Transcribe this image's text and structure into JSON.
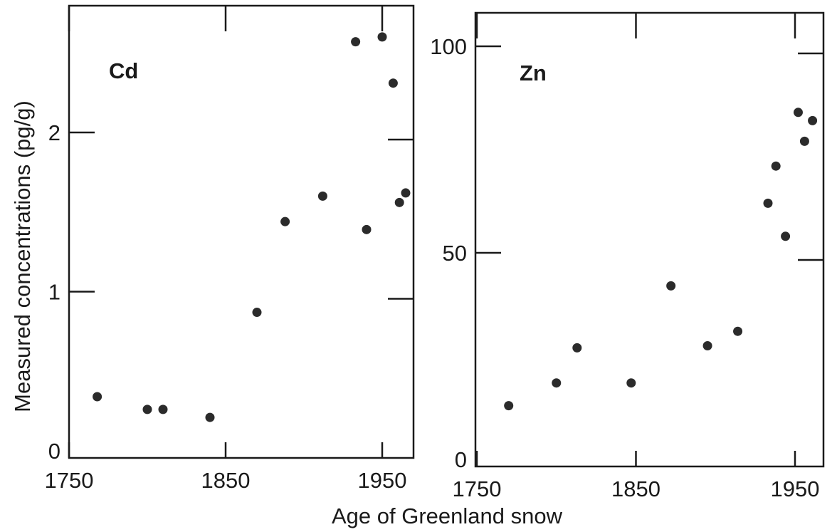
{
  "figure": {
    "ylabel": "Measured concentrations  (pg/g)",
    "xlabel": "Age of Greenland snow",
    "ink_color": "#1a1a1a",
    "marker_color": "#2b2b2b"
  },
  "chart_data": [
    {
      "type": "scatter",
      "title": "Cd",
      "xlabel": "",
      "ylabel": "",
      "xlim": [
        1750,
        1970
      ],
      "ylim": [
        0,
        2.7
      ],
      "xticks": [
        1750,
        1850,
        1950
      ],
      "xtick_labels": [
        "1750",
        "1850",
        "1950"
      ],
      "yticks": [
        0,
        1,
        2
      ],
      "ytick_labels": [
        "0",
        "1",
        "2"
      ],
      "grid": false,
      "series": [
        {
          "x": [
            1768,
            1800,
            1810,
            1840,
            1870,
            1888,
            1912,
            1933,
            1940,
            1950,
            1957,
            1961,
            1965
          ],
          "y": [
            0.34,
            0.26,
            0.26,
            0.21,
            0.87,
            1.44,
            1.6,
            2.57,
            1.39,
            2.6,
            2.31,
            1.56,
            1.62
          ]
        }
      ]
    },
    {
      "type": "scatter",
      "title": "Zn",
      "xlabel": "",
      "ylabel": "",
      "xlim": [
        1750,
        1960
      ],
      "ylim": [
        0,
        105
      ],
      "xticks": [
        1750,
        1850,
        1950
      ],
      "xtick_labels": [
        "1750",
        "1850",
        "1950"
      ],
      "yticks": [
        0,
        50,
        100
      ],
      "ytick_labels": [
        "0",
        "50",
        "100"
      ],
      "grid": false,
      "series": [
        {
          "x": [
            1770,
            1800,
            1813,
            1847,
            1872,
            1895,
            1914,
            1933,
            1938,
            1944,
            1952,
            1956,
            1961
          ],
          "y": [
            13,
            18.5,
            27,
            18.5,
            42,
            27.5,
            31,
            62,
            71,
            54,
            84,
            77,
            82
          ]
        }
      ]
    }
  ]
}
